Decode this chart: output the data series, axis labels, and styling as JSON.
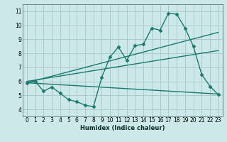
{
  "bg_color": "#cde8e8",
  "grid_color": "#aacccc",
  "line_color": "#1a7a6e",
  "marker_style": "D",
  "marker_size": 2.5,
  "linewidth": 1.0,
  "xlabel": "Humidex (Indice chaleur)",
  "xlim": [
    -0.5,
    23.5
  ],
  "ylim": [
    3.5,
    11.5
  ],
  "xticks": [
    0,
    1,
    2,
    3,
    4,
    5,
    6,
    7,
    8,
    9,
    10,
    11,
    12,
    13,
    14,
    15,
    16,
    17,
    18,
    19,
    20,
    21,
    22,
    23
  ],
  "yticks": [
    4,
    5,
    6,
    7,
    8,
    9,
    10,
    11
  ],
  "series1_x": [
    0,
    1,
    2,
    3,
    4,
    5,
    6,
    7,
    8,
    9,
    10,
    11,
    12,
    13,
    14,
    15,
    16,
    17,
    18,
    19,
    20,
    21,
    22,
    23
  ],
  "series1_y": [
    5.9,
    6.0,
    5.3,
    5.6,
    5.15,
    4.7,
    4.55,
    4.3,
    4.2,
    6.3,
    7.75,
    8.45,
    7.5,
    8.55,
    8.65,
    9.8,
    9.65,
    10.85,
    10.8,
    9.8,
    8.5,
    6.5,
    5.65,
    5.05
  ],
  "series2_x": [
    0,
    23
  ],
  "series2_y": [
    5.9,
    9.5
  ],
  "series3_x": [
    0,
    23
  ],
  "series3_y": [
    6.0,
    8.2
  ],
  "series4_x": [
    0,
    23
  ],
  "series4_y": [
    5.9,
    5.1
  ]
}
